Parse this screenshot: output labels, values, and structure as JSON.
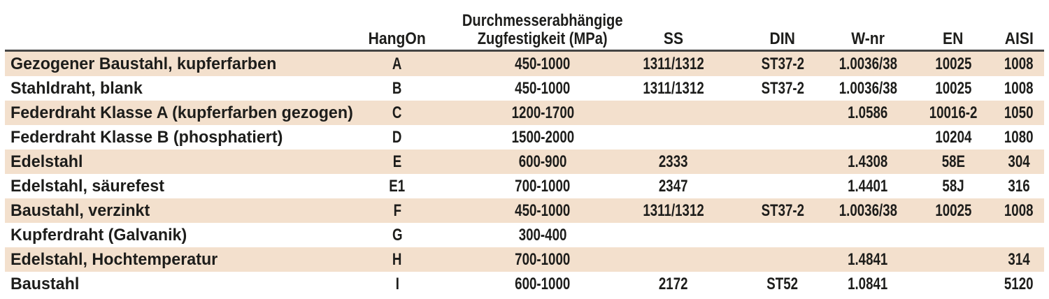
{
  "colors": {
    "stripe": "#f3e0cd",
    "divider": "#444444",
    "text": "#1d1d1b",
    "bg": "#ffffff"
  },
  "table": {
    "headers": {
      "material": "",
      "hangon": "HangOn",
      "tensile_line1": "Durchmesserabhängige",
      "tensile_line2": "Zugfestigkeit (MPa)",
      "ss": "SS",
      "din": "DIN",
      "wnr": "W-nr",
      "en": "EN",
      "aisi": "AISI"
    },
    "rows": [
      {
        "material": "Gezogener Baustahl, kupferfarben",
        "hangon": "A",
        "tensile": "450-1000",
        "ss": "1311/1312",
        "din": "ST37-2",
        "wnr": "1.0036/38",
        "en": "10025",
        "aisi": "1008"
      },
      {
        "material": "Stahldraht, blank",
        "hangon": "B",
        "tensile": "450-1000",
        "ss": "1311/1312",
        "din": "ST37-2",
        "wnr": "1.0036/38",
        "en": "10025",
        "aisi": "1008"
      },
      {
        "material": "Federdraht Klasse A (kupferfarben gezogen)",
        "hangon": "C",
        "tensile": "1200-1700",
        "ss": "",
        "din": "",
        "wnr": "1.0586",
        "en": "10016-2",
        "aisi": "1050"
      },
      {
        "material": "Federdraht Klasse B (phosphatiert)",
        "hangon": "D",
        "tensile": "1500-2000",
        "ss": "",
        "din": "",
        "wnr": "",
        "en": "10204",
        "aisi": "1080"
      },
      {
        "material": "Edelstahl",
        "hangon": "E",
        "tensile": "600-900",
        "ss": "2333",
        "din": "",
        "wnr": "1.4308",
        "en": "58E",
        "aisi": "304"
      },
      {
        "material": "Edelstahl, säurefest",
        "hangon": "E1",
        "tensile": "700-1000",
        "ss": "2347",
        "din": "",
        "wnr": "1.4401",
        "en": "58J",
        "aisi": "316"
      },
      {
        "material": "Baustahl, verzinkt",
        "hangon": "F",
        "tensile": "450-1000",
        "ss": "1311/1312",
        "din": "ST37-2",
        "wnr": "1.0036/38",
        "en": "10025",
        "aisi": "1008"
      },
      {
        "material": "Kupferdraht (Galvanik)",
        "hangon": "G",
        "tensile": "300-400",
        "ss": "",
        "din": "",
        "wnr": "",
        "en": "",
        "aisi": ""
      },
      {
        "material": "Edelstahl, Hochtemperatur",
        "hangon": "H",
        "tensile": "700-1000",
        "ss": "",
        "din": "",
        "wnr": "1.4841",
        "en": "",
        "aisi": "314"
      },
      {
        "material": "Baustahl",
        "hangon": "I",
        "tensile": "600-1000",
        "ss": "2172",
        "din": "ST52",
        "wnr": "1.0841",
        "en": "",
        "aisi": "5120"
      }
    ]
  }
}
